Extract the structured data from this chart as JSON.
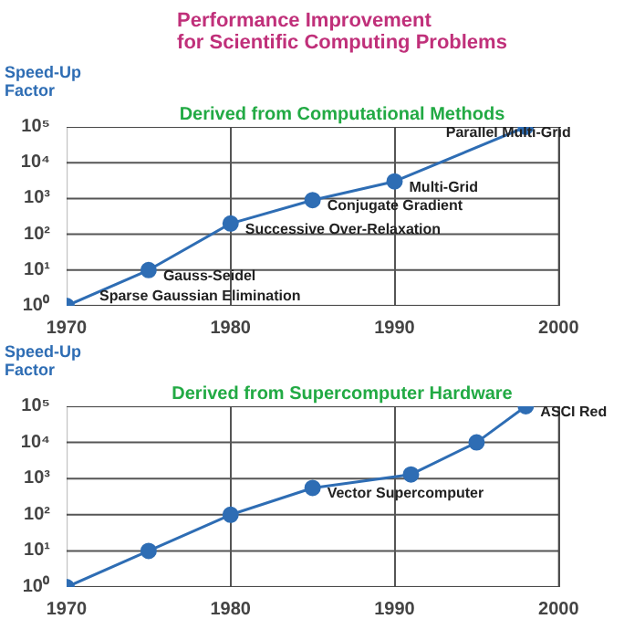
{
  "chart_data": [
    {
      "type": "line",
      "title": "Performance Improvement\nfor Scientific Computing Problems",
      "subtitle": "Derived from Computational Methods",
      "ylabel": "Speed-Up\nFactor",
      "x": [
        1970,
        1975,
        1980,
        1985,
        1990,
        1998
      ],
      "series": [
        {
          "color": "#2e6db4",
          "values": [
            1,
            10,
            200,
            900,
            3000,
            100000
          ]
        }
      ],
      "xlim": [
        1970,
        2000
      ],
      "xticks": [
        1970,
        1980,
        1990,
        2000
      ],
      "ylim": [
        1,
        100000
      ],
      "yticks": [
        {
          "value": 1,
          "label": "10⁰"
        },
        {
          "value": 10,
          "label": "10¹"
        },
        {
          "value": 100,
          "label": "10²"
        },
        {
          "value": 1000,
          "label": "10³"
        },
        {
          "value": 10000,
          "label": "10⁴"
        },
        {
          "value": 100000,
          "label": "10⁵"
        }
      ],
      "log": "y",
      "grid": true,
      "marker": "circle",
      "annotations": [
        {
          "text": "Sparse Gaussian Elimination",
          "x": 1970,
          "y": 1
        },
        {
          "text": "Gauss-Seidel",
          "x": 1975,
          "y": 10
        },
        {
          "text": "Successive Over-Relaxation",
          "x": 1980,
          "y": 200
        },
        {
          "text": "Conjugate Gradient",
          "x": 1985,
          "y": 900
        },
        {
          "text": "Multi-Grid",
          "x": 1990,
          "y": 3000
        },
        {
          "text": "Parallel Multi-Grid",
          "x": 1998,
          "y": 100000
        }
      ]
    },
    {
      "type": "line",
      "subtitle": "Derived from Supercomputer Hardware",
      "ylabel": "Speed-Up\nFactor",
      "x": [
        1970,
        1975,
        1980,
        1985,
        1991,
        1995,
        1998
      ],
      "series": [
        {
          "color": "#2e6db4",
          "values": [
            1,
            10,
            100,
            550,
            1300,
            10000,
            100000
          ]
        }
      ],
      "xlim": [
        1970,
        2000
      ],
      "xticks": [
        1970,
        1980,
        1990,
        2000
      ],
      "ylim": [
        1,
        100000
      ],
      "yticks": [
        {
          "value": 1,
          "label": "10⁰"
        },
        {
          "value": 10,
          "label": "10¹"
        },
        {
          "value": 100,
          "label": "10²"
        },
        {
          "value": 1000,
          "label": "10³"
        },
        {
          "value": 10000,
          "label": "10⁴"
        },
        {
          "value": 100000,
          "label": "10⁵"
        }
      ],
      "log": "y",
      "grid": true,
      "marker": "circle",
      "annotations": [
        {
          "text": "Vector Supercomputer",
          "x": 1985,
          "y": 550
        },
        {
          "text": "ASCI Red",
          "x": 1998,
          "y": 100000
        }
      ]
    }
  ]
}
